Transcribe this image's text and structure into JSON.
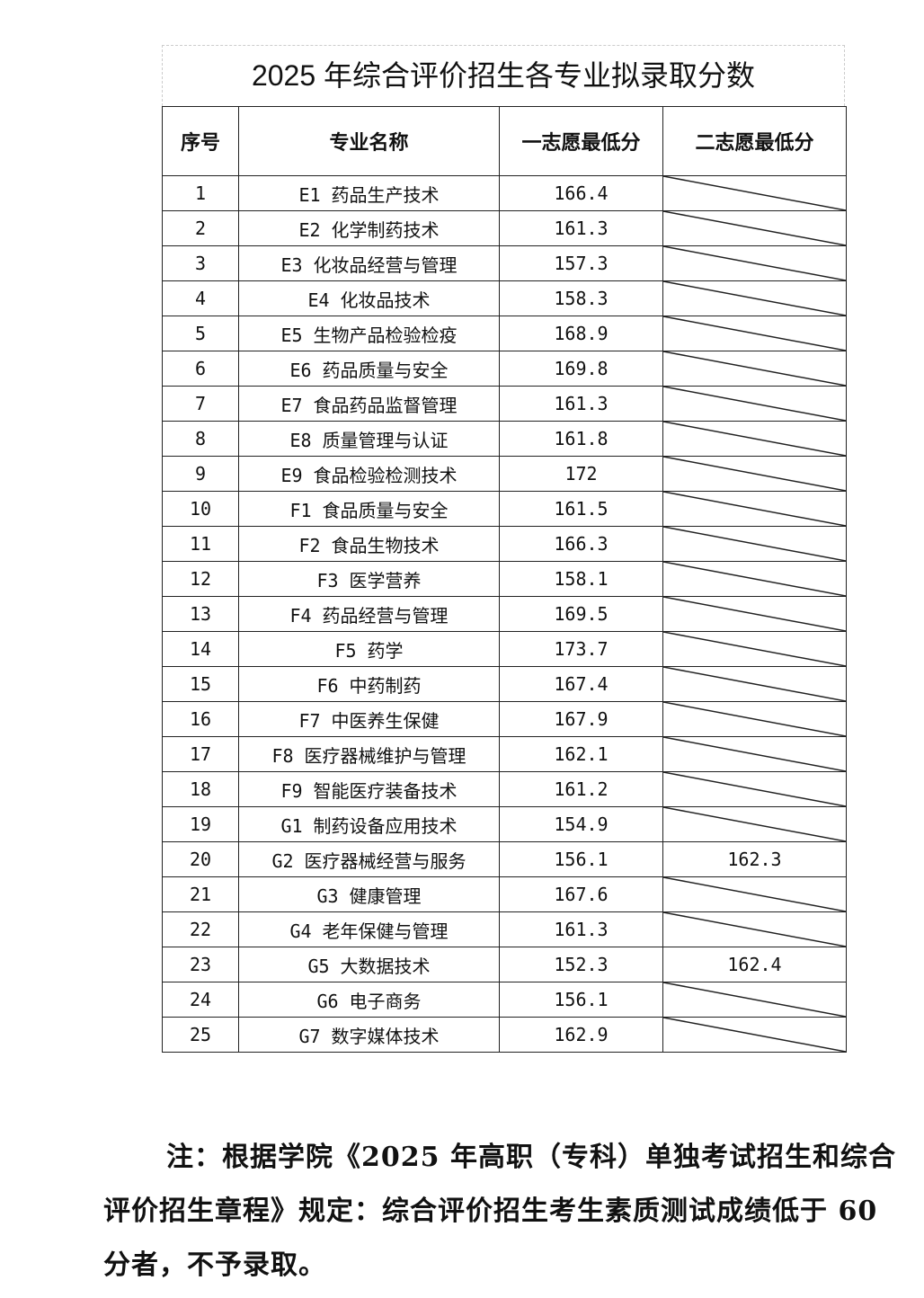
{
  "title": "2025 年综合评价招生各专业拟录取分数",
  "table": {
    "headers": [
      "序号",
      "专业名称",
      "一志愿最低分",
      "二志愿最低分"
    ],
    "rows": [
      [
        "1",
        "E1 药品生产技术",
        "166.4",
        ""
      ],
      [
        "2",
        "E2 化学制药技术",
        "161.3",
        ""
      ],
      [
        "3",
        "E3 化妆品经营与管理",
        "157.3",
        ""
      ],
      [
        "4",
        "E4 化妆品技术",
        "158.3",
        ""
      ],
      [
        "5",
        "E5 生物产品检验检疫",
        "168.9",
        ""
      ],
      [
        "6",
        "E6 药品质量与安全",
        "169.8",
        ""
      ],
      [
        "7",
        "E7 食品药品监督管理",
        "161.3",
        ""
      ],
      [
        "8",
        "E8 质量管理与认证",
        "161.8",
        ""
      ],
      [
        "9",
        "E9 食品检验检测技术",
        "172",
        ""
      ],
      [
        "10",
        "F1 食品质量与安全",
        "161.5",
        ""
      ],
      [
        "11",
        "F2 食品生物技术",
        "166.3",
        ""
      ],
      [
        "12",
        "F3 医学营养",
        "158.1",
        ""
      ],
      [
        "13",
        "F4 药品经营与管理",
        "169.5",
        ""
      ],
      [
        "14",
        "F5 药学",
        "173.7",
        ""
      ],
      [
        "15",
        "F6 中药制药",
        "167.4",
        ""
      ],
      [
        "16",
        "F7 中医养生保健",
        "167.9",
        ""
      ],
      [
        "17",
        "F8 医疗器械维护与管理",
        "162.1",
        ""
      ],
      [
        "18",
        "F9 智能医疗装备技术",
        "161.2",
        ""
      ],
      [
        "19",
        "G1 制药设备应用技术",
        "154.9",
        ""
      ],
      [
        "20",
        "G2 医疗器械经营与服务",
        "156.1",
        "162.3"
      ],
      [
        "21",
        "G3 健康管理",
        "167.6",
        ""
      ],
      [
        "22",
        "G4 老年保健与管理",
        "161.3",
        ""
      ],
      [
        "23",
        "G5 大数据技术",
        "152.3",
        "162.4"
      ],
      [
        "24",
        "G6 电子商务",
        "156.1",
        ""
      ],
      [
        "25",
        "G7 数字媒体技术",
        "162.9",
        ""
      ]
    ]
  },
  "note": "注：根据学院《2025 年高职（专科）单独考试招生和综合评价招生章程》规定：综合评价招生考生素质测试成绩低于 60 分者，不予录取。"
}
